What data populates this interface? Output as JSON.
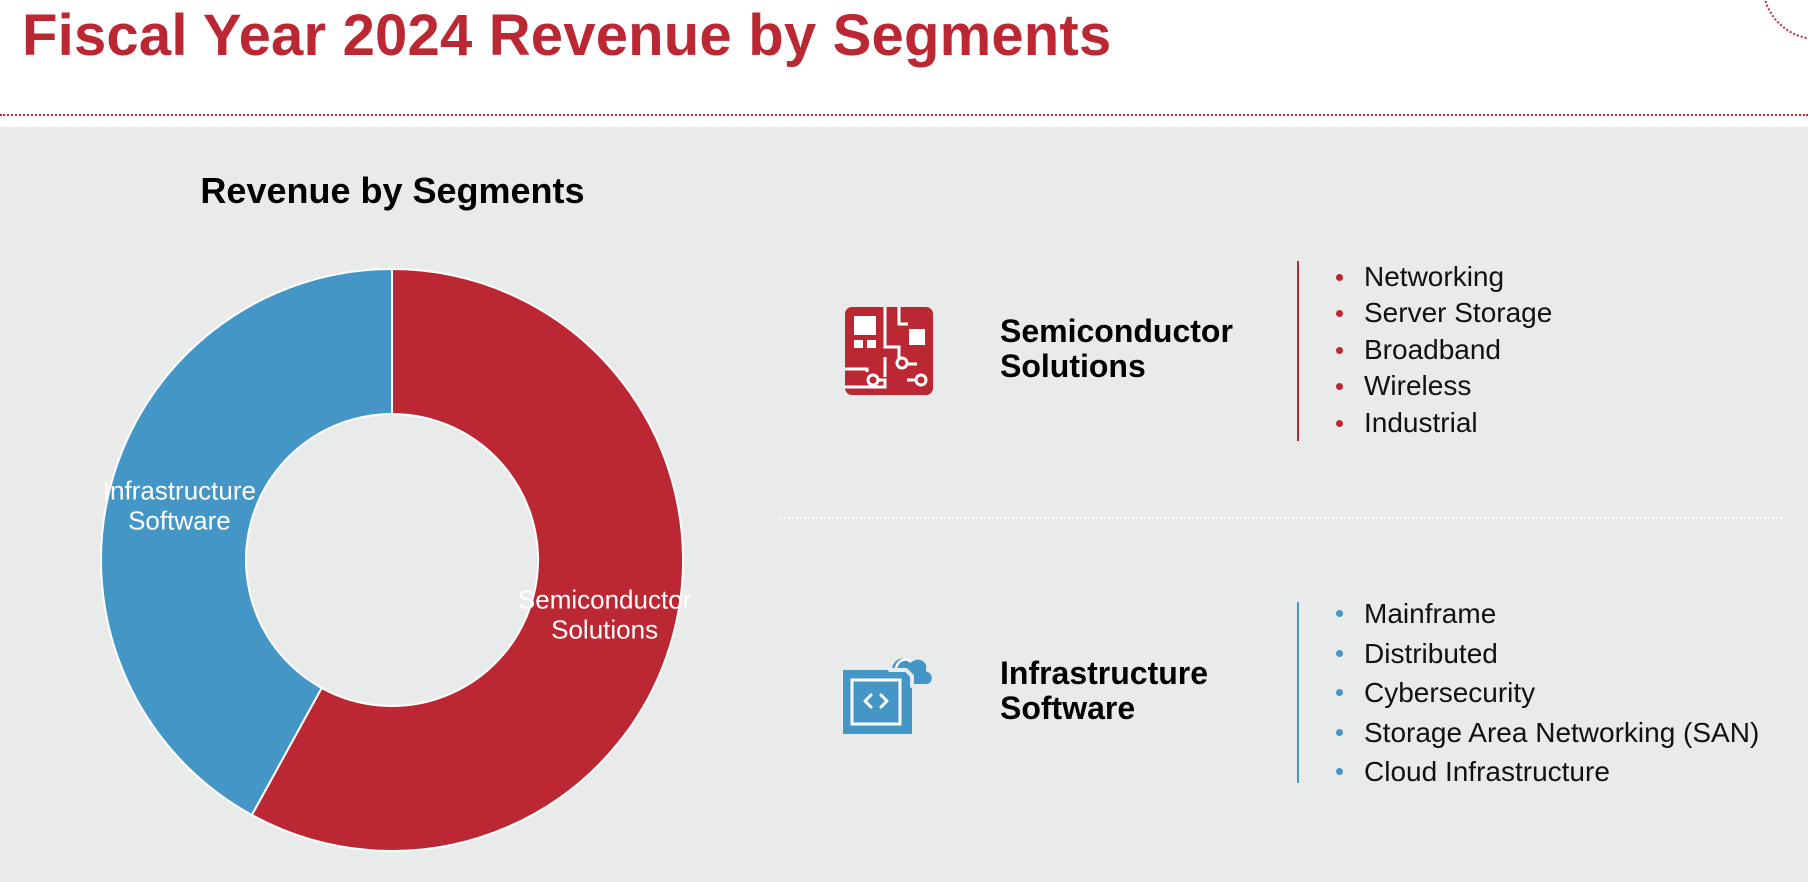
{
  "page_title": "Fiscal Year 2024 Revenue by Segments",
  "colors": {
    "brand_red": "#bc2734",
    "infra_blue": "#4396c5",
    "panel_gray": "#e9eaea"
  },
  "chart_data": {
    "type": "pie",
    "style": "donut",
    "title": "Revenue by Segments",
    "categories": [
      "Semiconductor Solutions",
      "Infrastructure Software"
    ],
    "values": [
      58,
      42
    ],
    "unit": "%",
    "label_lines": [
      [
        "Semiconductor",
        "Solutions"
      ],
      [
        "Infrastructure",
        "Software"
      ]
    ],
    "colors": [
      "#bc2734",
      "#4396c5"
    ],
    "legend": "none"
  },
  "segments": {
    "semiconductor": {
      "icon": "circuit-board-icon",
      "name_lines": [
        "Semiconductor",
        "Solutions"
      ],
      "items": [
        "Networking",
        "Server Storage",
        "Broadband",
        "Wireless",
        "Industrial"
      ]
    },
    "infrastructure": {
      "icon": "cloud-code-icon",
      "name_lines": [
        "Infrastructure",
        "Software"
      ],
      "items": [
        "Mainframe",
        "Distributed",
        "Cybersecurity",
        "Storage Area Networking (SAN)",
        "Cloud Infrastructure"
      ]
    }
  }
}
